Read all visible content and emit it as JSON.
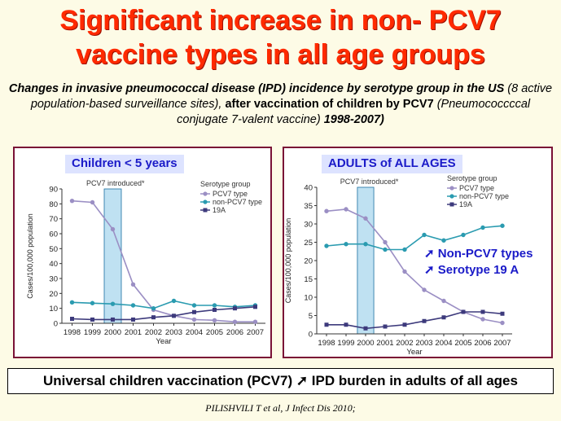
{
  "slide": {
    "title_line1": "Significant increase in non- PCV7",
    "title_line2": "vaccine types in all age groups",
    "subtitle": {
      "part1": "Changes in invasive pneumococcal disease (IPD) incidence by serotype group in the US",
      "part2": " (8 active population-based surveillance sites), ",
      "part3": "after vaccination of children by PCV7 ",
      "part4": "(Pneumococcccal conjugate 7-valent vaccine) ",
      "part5": "1998-2007)"
    },
    "left_label": "Children < 5 years",
    "right_label": "ADULTS of ALL AGES",
    "annotation1": "➚ Non-PCV7 types",
    "annotation2": "➚ Serotype 19 A",
    "bottom_text": "Universal children vaccination (PCV7) ➚ IPD burden in adults of all ages",
    "citation": "PILISHVILI T et al, J Infect Dis  2010;"
  },
  "colors": {
    "pcv7": "#9b8fc4",
    "non_pcv7": "#2a9bb0",
    "s19a": "#3d3a7c",
    "highlight": "#bfe1f2",
    "title": "#ff2a00",
    "label_text": "#1a1ac8"
  },
  "chart_data": [
    {
      "type": "line",
      "id": "children",
      "title": "Children < 5 years",
      "x": [
        "1998",
        "1999",
        "2000",
        "2001",
        "2002",
        "2003",
        "2004",
        "2005",
        "2006",
        "2007"
      ],
      "xlabel": "Year",
      "ylabel": "Cases/100,000 population",
      "ylim": [
        0,
        90
      ],
      "yticks": [
        0,
        10,
        20,
        30,
        40,
        50,
        60,
        70,
        80,
        90
      ],
      "annotation": "PCV7 introduced*",
      "highlight_category": "2000",
      "legend_title": "Serotype group",
      "series": [
        {
          "name": "PCV7 type",
          "key": "pcv7",
          "marker": "circle",
          "values": [
            82,
            81,
            63,
            26,
            9,
            5,
            2.5,
            2,
            1,
            1
          ]
        },
        {
          "name": "non-PCV7 type",
          "key": "non_pcv7",
          "marker": "circle",
          "values": [
            14,
            13.5,
            13,
            12,
            10,
            15,
            12,
            12,
            11,
            12
          ]
        },
        {
          "name": "19A",
          "key": "s19a",
          "marker": "square",
          "values": [
            3,
            2.5,
            2.5,
            2.5,
            4,
            5,
            7.5,
            9,
            10,
            11
          ]
        }
      ]
    },
    {
      "type": "line",
      "id": "adults",
      "title": "ADULTS of ALL AGES",
      "x": [
        "1998",
        "1999",
        "2000",
        "2001",
        "2002",
        "2003",
        "2004",
        "2005",
        "2006",
        "2007"
      ],
      "xlabel": "Year",
      "ylabel": "Cases/100,000 population",
      "ylim": [
        0,
        40
      ],
      "yticks": [
        0,
        5,
        10,
        15,
        20,
        25,
        30,
        35,
        40
      ],
      "annotation": "PCV7 introduced*",
      "highlight_category": "2000",
      "legend_title": "Serotype group",
      "series": [
        {
          "name": "PCV7 type",
          "key": "pcv7",
          "marker": "circle",
          "values": [
            33.5,
            34,
            31.5,
            25,
            17,
            12,
            9,
            6,
            4,
            3
          ]
        },
        {
          "name": "non-PCV7 type",
          "key": "non_pcv7",
          "marker": "circle",
          "values": [
            24,
            24.5,
            24.5,
            23,
            23,
            27,
            25.5,
            27,
            29,
            29.5
          ]
        },
        {
          "name": "19A",
          "key": "s19a",
          "marker": "square",
          "values": [
            2.5,
            2.5,
            1.5,
            2,
            2.5,
            3.5,
            4.5,
            6,
            6,
            5.5
          ]
        }
      ]
    }
  ]
}
